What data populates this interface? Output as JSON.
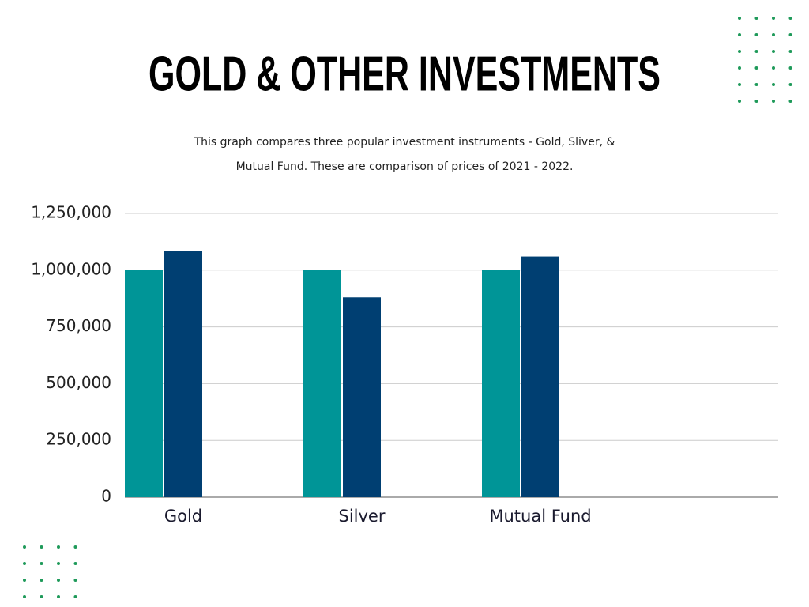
{
  "chart_data": {
    "type": "bar",
    "title": "GOLD & OTHER INVESTMENTS",
    "subtitle": [
      "This graph compares three popular investment instruments - Gold, Sliver, &",
      "Mutual Fund. These are comparison of  prices of 2021 - 2022."
    ],
    "categories": [
      "Gold",
      "Silver",
      "Mutual Fund"
    ],
    "series": [
      {
        "color": "#009597",
        "values": [
          1000000,
          1000000,
          1000000
        ]
      },
      {
        "color": "#003f72",
        "values": [
          1085000,
          880000,
          1060000
        ]
      }
    ],
    "ylim": [
      0,
      1250000
    ],
    "yticks": [
      0,
      {
        "value": 250000,
        "label": "250,000"
      },
      {
        "value": 500000,
        "label": "500,000"
      },
      {
        "value": 750000,
        "label": "750,000"
      },
      {
        "value": 1000000,
        "label": "1,000,000"
      },
      {
        "value": 1250000,
        "label": "1,250,000"
      }
    ],
    "grid": true
  }
}
